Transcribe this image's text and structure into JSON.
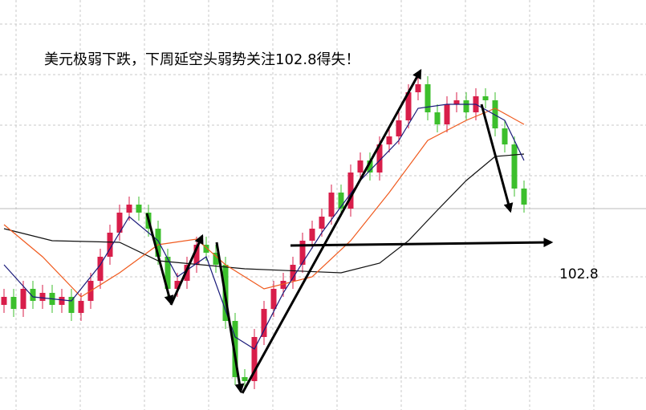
{
  "chart_data": {
    "type": "candlestick",
    "title": "美元极弱下跌，下周延空头弱势关注102.8得失！",
    "annotation": "102.8",
    "ylim": [
      100.69,
      105.8
    ],
    "up_color": "#d81e4a",
    "down_color": "#3cbf2c",
    "open": [
      102.0,
      102.1,
      101.95,
      102.2,
      102.05,
      102.15,
      102.0,
      102.1,
      101.9,
      102.05,
      102.3,
      102.6,
      102.9,
      103.15,
      103.25,
      103.15,
      102.95,
      102.6,
      102.2,
      102.3,
      102.5,
      102.75,
      102.65,
      102.5,
      101.8,
      101.1,
      101.05,
      101.6,
      101.95,
      102.2,
      102.3,
      102.5,
      102.8,
      102.95,
      103.1,
      103.4,
      103.2,
      103.65,
      103.8,
      103.65,
      104.0,
      104.1,
      104.3,
      104.65,
      104.75,
      104.4,
      104.25,
      104.5,
      104.55,
      104.4,
      104.6,
      104.55,
      104.2,
      104.0,
      103.45
    ],
    "high": [
      102.2,
      102.2,
      102.3,
      102.3,
      102.25,
      102.25,
      102.2,
      102.2,
      102.15,
      102.4,
      102.7,
      103.0,
      103.25,
      103.35,
      103.35,
      103.25,
      103.05,
      102.7,
      102.4,
      102.6,
      102.85,
      102.85,
      102.75,
      102.6,
      101.9,
      101.2,
      101.7,
      102.05,
      102.3,
      102.4,
      102.6,
      102.9,
      103.05,
      103.2,
      103.5,
      103.5,
      103.75,
      103.9,
      103.9,
      104.1,
      104.2,
      104.4,
      104.75,
      104.85,
      104.85,
      104.5,
      104.6,
      104.65,
      104.65,
      104.7,
      104.7,
      104.65,
      104.3,
      104.1,
      103.55
    ],
    "low": [
      101.9,
      101.85,
      101.85,
      101.95,
      101.95,
      101.9,
      101.9,
      101.8,
      101.8,
      101.95,
      102.2,
      102.5,
      102.8,
      103.05,
      103.05,
      102.85,
      102.5,
      102.1,
      102.1,
      102.2,
      102.4,
      102.55,
      102.4,
      101.7,
      101.0,
      100.95,
      100.95,
      101.5,
      101.85,
      102.1,
      102.2,
      102.4,
      102.7,
      102.85,
      103.0,
      103.1,
      103.1,
      103.55,
      103.55,
      103.55,
      103.9,
      104.0,
      104.2,
      104.55,
      104.3,
      104.15,
      104.15,
      104.4,
      104.3,
      104.3,
      104.45,
      104.1,
      103.9,
      103.35,
      103.15
    ],
    "close": [
      102.1,
      101.95,
      102.2,
      102.05,
      102.15,
      102.0,
      102.1,
      101.9,
      102.05,
      102.3,
      102.6,
      102.9,
      103.15,
      103.25,
      103.15,
      102.95,
      102.6,
      102.2,
      102.3,
      102.5,
      102.75,
      102.65,
      102.5,
      101.8,
      101.1,
      101.05,
      101.6,
      101.95,
      102.2,
      102.3,
      102.5,
      102.8,
      102.95,
      103.1,
      103.4,
      103.2,
      103.65,
      103.8,
      103.65,
      104.0,
      104.1,
      104.3,
      104.65,
      104.75,
      104.4,
      104.25,
      104.5,
      104.55,
      104.4,
      104.6,
      104.55,
      104.2,
      104.0,
      103.45,
      103.25
    ],
    "lines": [
      {
        "color": "#111111",
        "x": [
          0,
          5,
          12,
          16,
          25,
          35,
          39,
          42,
          45,
          48,
          51,
          54
        ],
        "values": [
          102.95,
          102.8,
          102.78,
          102.55,
          102.45,
          102.4,
          102.52,
          102.8,
          103.18,
          103.55,
          103.85,
          103.88
        ]
      },
      {
        "color": "#f05a1e",
        "x": [
          0,
          4,
          8,
          12,
          16,
          20,
          23,
          27,
          32,
          36,
          40,
          44,
          48,
          51,
          54
        ],
        "values": [
          103.0,
          102.6,
          102.1,
          102.4,
          102.75,
          102.82,
          102.5,
          102.2,
          102.35,
          102.8,
          103.4,
          104.05,
          104.3,
          104.45,
          104.25
        ]
      },
      {
        "color": "#1a1a7a",
        "x": [
          0,
          3,
          7,
          10,
          13,
          16,
          18,
          21,
          24,
          26,
          29,
          33,
          37,
          41,
          43,
          46,
          49,
          52,
          54
        ],
        "values": [
          102.5,
          102.1,
          102.05,
          102.5,
          103.1,
          102.8,
          102.35,
          102.6,
          101.6,
          101.45,
          102.15,
          102.9,
          103.55,
          104.05,
          104.45,
          104.5,
          104.5,
          104.3,
          103.8
        ]
      }
    ]
  }
}
